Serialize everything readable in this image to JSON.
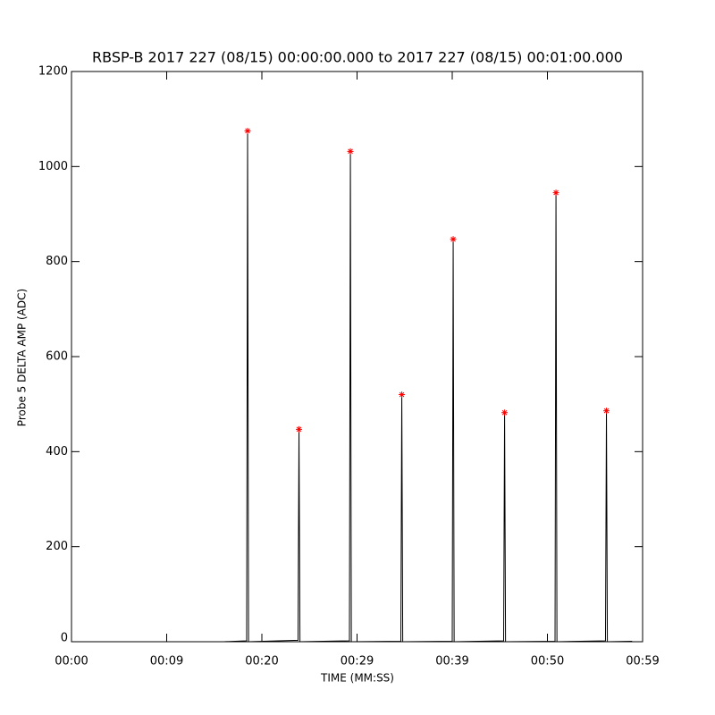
{
  "chart_data": {
    "type": "line",
    "title": "RBSP-B 2017 227 (08/15) 00:00:00.000 to 2017 227 (08/15) 00:01:00.000",
    "xlabel": "TIME (MM:SS)",
    "ylabel": "Probe 5 DELTA AMP (ADC)",
    "xlim": [
      0,
      60
    ],
    "ylim": [
      0,
      1200
    ],
    "xticks": [
      {
        "value": 0,
        "label": "00:00"
      },
      {
        "value": 10,
        "label": "00:09"
      },
      {
        "value": 20,
        "label": "00:20"
      },
      {
        "value": 30,
        "label": "00:29"
      },
      {
        "value": 40,
        "label": "00:39"
      },
      {
        "value": 50,
        "label": "00:50"
      },
      {
        "value": 60,
        "label": "00:59"
      }
    ],
    "yticks": [
      0,
      200,
      400,
      600,
      800,
      1000,
      1200
    ],
    "series": [
      {
        "style": "line",
        "color": "#000000",
        "x": [
          16.0,
          18.4,
          18.5,
          18.6,
          23.8,
          23.9,
          24.0,
          29.2,
          29.3,
          29.4,
          34.6,
          34.7,
          34.8,
          40.0,
          40.1,
          40.2,
          45.4,
          45.5,
          45.6,
          50.8,
          50.9,
          51.0,
          56.1,
          56.2,
          56.3,
          58.9
        ],
        "values": [
          0,
          2,
          1075,
          0,
          3,
          447,
          0,
          2,
          1032,
          0,
          1,
          520,
          0,
          1,
          847,
          0,
          2,
          482,
          0,
          1,
          945,
          0,
          2,
          486,
          0,
          1
        ]
      },
      {
        "style": "asterisk",
        "color": "#ff0000",
        "x": [
          18.5,
          23.9,
          29.3,
          34.7,
          40.1,
          45.5,
          50.9,
          56.2
        ],
        "values": [
          1075,
          447,
          1032,
          520,
          847,
          482,
          945,
          486
        ]
      }
    ]
  }
}
